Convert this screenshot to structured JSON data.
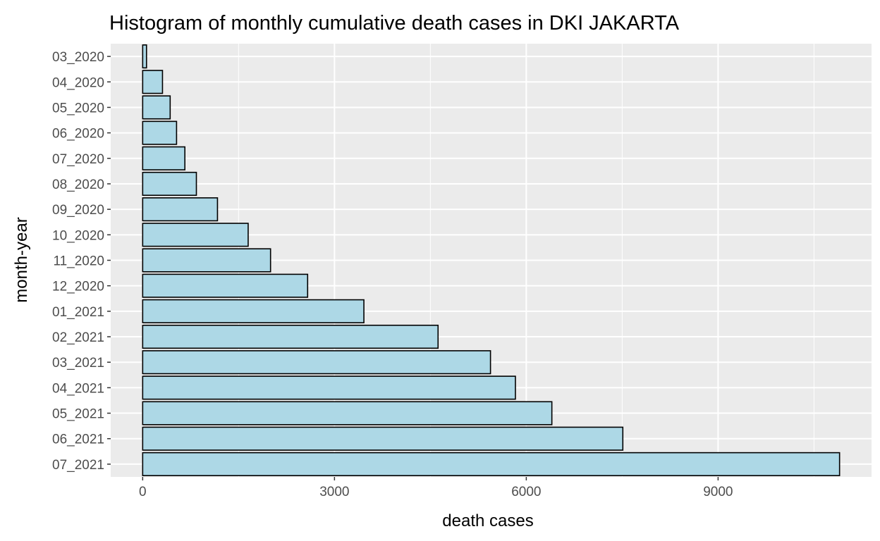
{
  "chart_data": {
    "type": "bar",
    "orientation": "horizontal",
    "title": "Histogram of monthly cumulative death cases in DKI JAKARTA",
    "xlabel": "death cases",
    "ylabel": "month-year",
    "categories": [
      "03_2020",
      "04_2020",
      "05_2020",
      "06_2020",
      "07_2020",
      "08_2020",
      "09_2020",
      "10_2020",
      "11_2020",
      "12_2020",
      "01_2021",
      "02_2021",
      "03_2021",
      "04_2021",
      "05_2021",
      "06_2021",
      "07_2021"
    ],
    "values": [
      60,
      310,
      430,
      530,
      660,
      840,
      1170,
      1650,
      2000,
      2580,
      3460,
      4620,
      5440,
      5830,
      6400,
      7510,
      10900
    ],
    "xlim": [
      -500,
      11400
    ],
    "x_ticks": [
      0,
      3000,
      6000,
      9000
    ],
    "x_tick_labels": [
      "0",
      "3000",
      "6000",
      "9000"
    ],
    "grid": true,
    "legend": "none",
    "colors": {
      "bar_fill": "#add8e6",
      "bar_stroke": "#000000",
      "panel_background": "#ebebeb",
      "gridline": "#ffffff"
    }
  }
}
